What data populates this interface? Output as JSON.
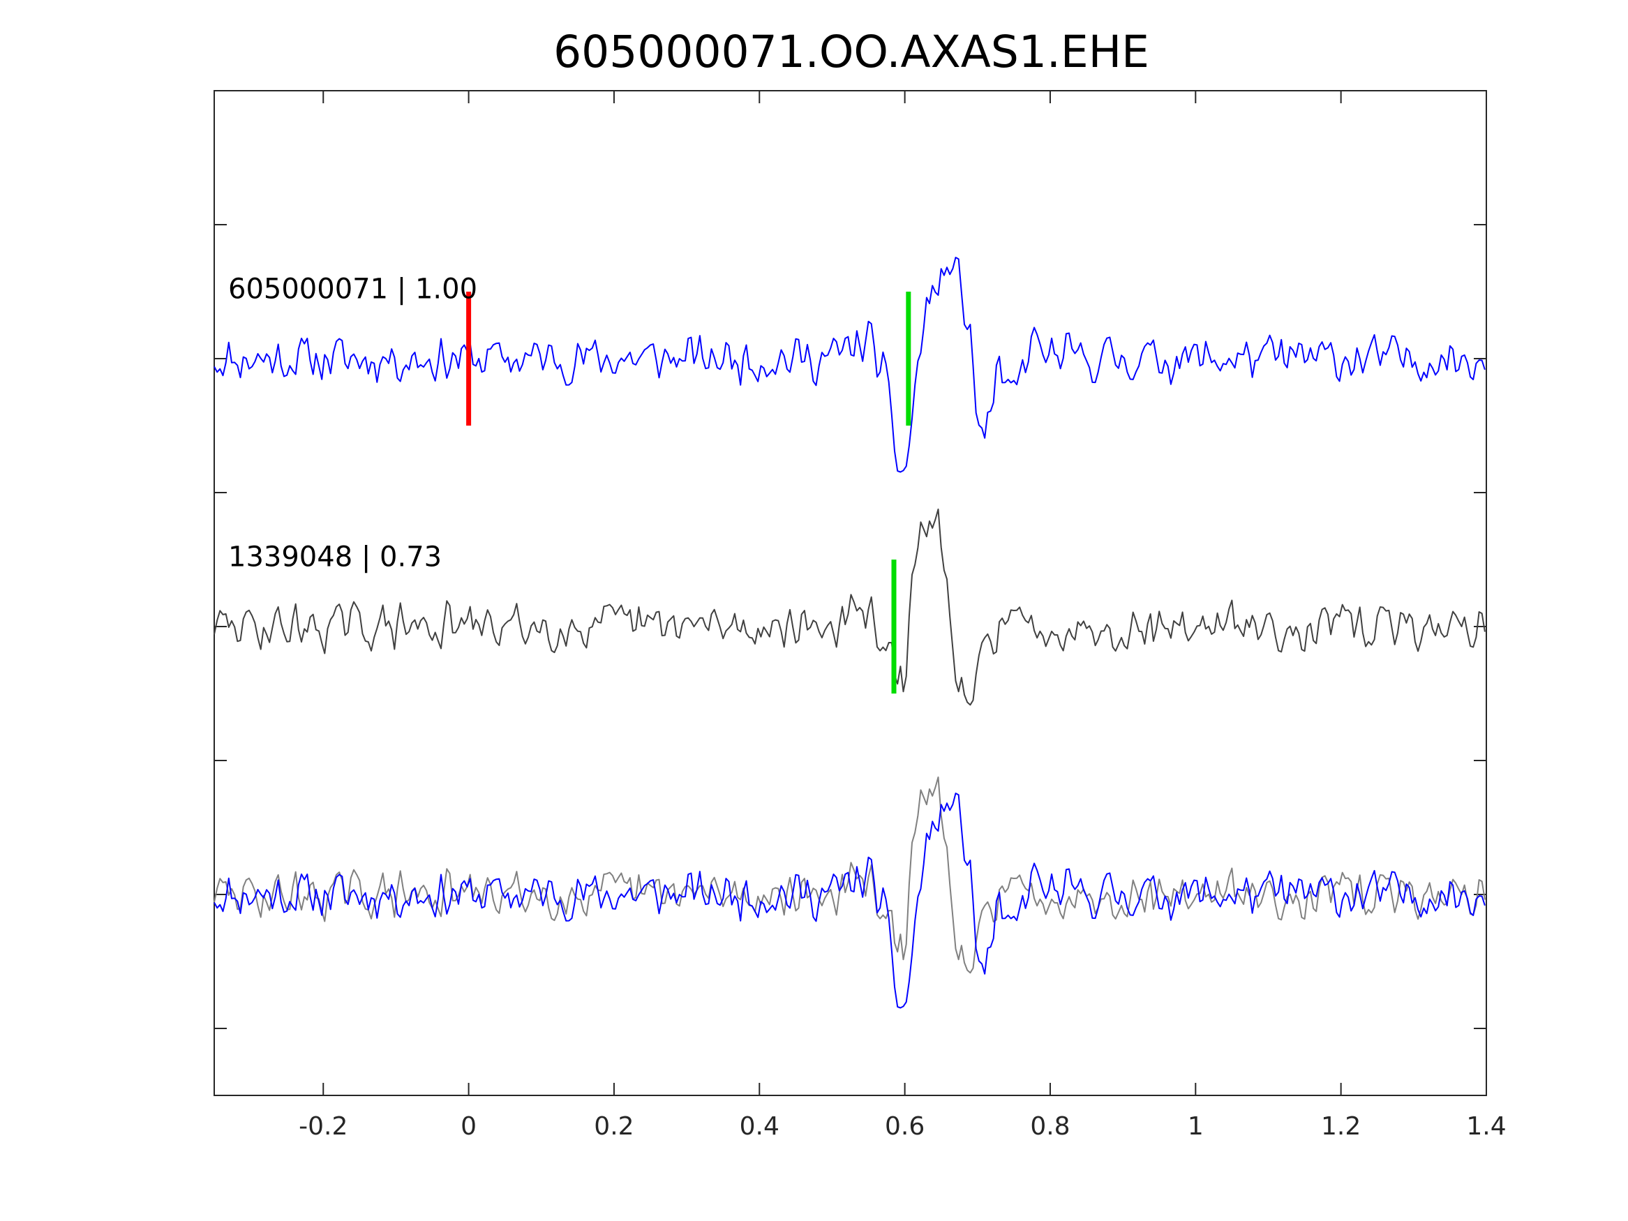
{
  "chart_data": {
    "type": "line",
    "title": "605000071.OO.AXAS1.EHE",
    "xlabel": "",
    "ylabel": "",
    "xlim": [
      -0.35,
      1.4
    ],
    "xticks": [
      -0.2,
      0,
      0.2,
      0.4,
      0.6,
      0.8,
      1,
      1.2,
      1.4
    ],
    "xtick_labels": [
      "-0.2",
      "0",
      "0.2",
      "0.4",
      "0.6",
      "0.8",
      "1",
      "1.2",
      "1.4"
    ],
    "y_tick_count": 7,
    "grid": false,
    "sample_interval": 0.004,
    "traces": [
      {
        "label": "605000071 | 1.00",
        "color": "#0000ff",
        "offset": 2,
        "seed": 11,
        "arrival_markers": [
          {
            "time": 0.0,
            "color": "#ff0000"
          },
          {
            "time": 0.605,
            "color": "#00dd00"
          }
        ],
        "event_shape": [
          [
            0.5,
            0.0
          ],
          [
            0.55,
            0.15
          ],
          [
            0.57,
            -0.1
          ],
          [
            0.59,
            -0.75
          ],
          [
            0.6,
            -0.9
          ],
          [
            0.615,
            -0.2
          ],
          [
            0.63,
            0.4
          ],
          [
            0.66,
            0.68
          ],
          [
            0.675,
            0.6
          ],
          [
            0.69,
            0.15
          ],
          [
            0.7,
            -0.45
          ],
          [
            0.71,
            -0.62
          ],
          [
            0.725,
            -0.15
          ],
          [
            0.75,
            -0.3
          ],
          [
            0.77,
            0.05
          ],
          [
            0.79,
            0.2
          ]
        ]
      },
      {
        "label": "1339048 | 0.73",
        "color": "#404040",
        "offset": 0,
        "seed": 29,
        "arrival_markers": [
          {
            "time": 0.585,
            "color": "#00dd00"
          }
        ],
        "event_shape": [
          [
            0.5,
            0.0
          ],
          [
            0.55,
            0.1
          ],
          [
            0.575,
            -0.1
          ],
          [
            0.59,
            -0.5
          ],
          [
            0.6,
            -0.45
          ],
          [
            0.61,
            0.3
          ],
          [
            0.63,
            0.85
          ],
          [
            0.645,
            0.78
          ],
          [
            0.66,
            0.2
          ],
          [
            0.675,
            -0.55
          ],
          [
            0.69,
            -0.65
          ],
          [
            0.71,
            -0.15
          ],
          [
            0.73,
            0.05
          ],
          [
            0.76,
            0.0
          ]
        ]
      }
    ],
    "overlay": {
      "offset": -2,
      "traces": [
        {
          "source": 1,
          "color": "#808080",
          "shift": 0
        },
        {
          "source": 0,
          "color": "#0000ff",
          "shift": 0
        }
      ]
    }
  }
}
